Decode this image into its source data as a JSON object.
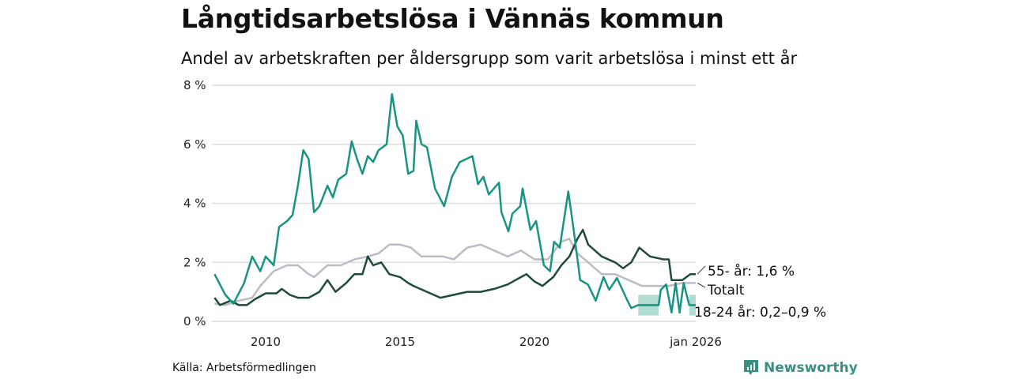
{
  "title": "Långtidsarbetslösa i Vännäs kommun",
  "subtitle": "Andel av arbetskraften per åldersgrupp som varit arbetslösa i minst ett år",
  "source": "Källa: Arbetsförmedlingen",
  "brand": "Newsworthy",
  "chart_data": {
    "type": "line",
    "xlim": [
      2008.0,
      2026.0
    ],
    "ylim": [
      0,
      8
    ],
    "y_ticks": [
      {
        "v": 0,
        "label": "0 %"
      },
      {
        "v": 2,
        "label": "2 %"
      },
      {
        "v": 4,
        "label": "4 %"
      },
      {
        "v": 6,
        "label": "6 %"
      },
      {
        "v": 8,
        "label": "8 %"
      }
    ],
    "x_ticks": [
      {
        "v": 2010,
        "label": "2010"
      },
      {
        "v": 2015,
        "label": "2015"
      },
      {
        "v": 2020,
        "label": "2020"
      },
      {
        "v": 2026,
        "label": "jan 2026"
      }
    ],
    "grid": true,
    "series": [
      {
        "name": "Totalt",
        "label": "Totalt",
        "color": "#bdbcc4",
        "x": [
          2008.1,
          2008.5,
          2009.0,
          2009.5,
          2009.8,
          2010.3,
          2010.8,
          2011.2,
          2011.6,
          2011.8,
          2012.3,
          2012.8,
          2013.3,
          2013.8,
          2014.2,
          2014.6,
          2015.0,
          2015.4,
          2015.8,
          2016.2,
          2016.6,
          2017.0,
          2017.5,
          2018.0,
          2018.5,
          2019.0,
          2019.5,
          2020.0,
          2020.5,
          2021.0,
          2021.3,
          2021.6,
          2022.0,
          2022.5,
          2023.0,
          2023.5,
          2024.0,
          2024.5,
          2025.0,
          2025.5,
          2026.0
        ],
        "y": [
          0.6,
          0.55,
          0.7,
          0.8,
          1.2,
          1.7,
          1.9,
          1.9,
          1.6,
          1.5,
          1.9,
          1.9,
          2.1,
          2.2,
          2.3,
          2.6,
          2.6,
          2.5,
          2.2,
          2.2,
          2.2,
          2.1,
          2.5,
          2.6,
          2.4,
          2.2,
          2.4,
          2.1,
          2.1,
          2.7,
          2.8,
          2.3,
          2.0,
          1.6,
          1.6,
          1.4,
          1.2,
          1.2,
          1.2,
          1.3,
          1.3
        ]
      },
      {
        "name": "55- år",
        "label": "55- år: 1,6 %",
        "color": "#1f4a3c",
        "x": [
          2008.1,
          2008.3,
          2008.7,
          2009.0,
          2009.3,
          2009.6,
          2010.0,
          2010.4,
          2010.6,
          2010.9,
          2011.2,
          2011.6,
          2012.0,
          2012.3,
          2012.6,
          2013.0,
          2013.3,
          2013.6,
          2013.8,
          2014.0,
          2014.3,
          2014.6,
          2015.0,
          2015.3,
          2015.5,
          2016.0,
          2016.5,
          2017.0,
          2017.5,
          2018.0,
          2018.5,
          2019.0,
          2019.5,
          2019.7,
          2020.0,
          2020.3,
          2020.7,
          2021.0,
          2021.3,
          2021.6,
          2021.8,
          2022.0,
          2022.5,
          2023.0,
          2023.3,
          2023.6,
          2023.9,
          2024.3,
          2024.8,
          2025.0,
          2025.1,
          2025.5,
          2025.8,
          2026.0
        ],
        "y": [
          0.8,
          0.55,
          0.7,
          0.55,
          0.55,
          0.75,
          0.95,
          0.95,
          1.1,
          0.9,
          0.8,
          0.8,
          1.0,
          1.4,
          1.0,
          1.3,
          1.6,
          1.6,
          2.2,
          1.9,
          2.0,
          1.6,
          1.5,
          1.3,
          1.2,
          1.0,
          0.8,
          0.9,
          1.0,
          1.0,
          1.1,
          1.25,
          1.5,
          1.6,
          1.35,
          1.2,
          1.5,
          1.9,
          2.2,
          2.8,
          3.1,
          2.6,
          2.2,
          2.0,
          1.8,
          2.0,
          2.5,
          2.2,
          2.1,
          2.1,
          1.4,
          1.4,
          1.6,
          1.6
        ]
      },
      {
        "name": "18-24 år",
        "label": "18-24 år: 0,2–0,9 %",
        "color": "#1a9482",
        "band_color": "#a8d8cc",
        "x": [
          2008.1,
          2008.5,
          2008.8,
          2009.2,
          2009.5,
          2009.8,
          2010.0,
          2010.3,
          2010.5,
          2010.8,
          2011.0,
          2011.2,
          2011.4,
          2011.6,
          2011.8,
          2012.0,
          2012.3,
          2012.5,
          2012.7,
          2013.0,
          2013.2,
          2013.4,
          2013.6,
          2013.8,
          2014.0,
          2014.2,
          2014.5,
          2014.7,
          2014.9,
          2015.1,
          2015.3,
          2015.5,
          2015.6,
          2015.8,
          2016.0,
          2016.3,
          2016.64,
          2016.93,
          2017.22,
          2017.69,
          2017.9,
          2018.1,
          2018.3,
          2018.68,
          2018.77,
          2019.03,
          2019.18,
          2019.47,
          2019.56,
          2019.85,
          2020.06,
          2020.35,
          2020.58,
          2020.73,
          2020.94,
          2021.26,
          2021.46,
          2021.7,
          2021.99,
          2022.28,
          2022.57,
          2022.78,
          2023.07,
          2023.45,
          2023.6,
          2023.86,
          2024.62,
          2024.7,
          2024.9,
          2025.1,
          2025.25,
          2025.4,
          2025.55,
          2025.76,
          2026.0
        ],
        "y": [
          1.6,
          0.9,
          0.6,
          1.3,
          2.2,
          1.7,
          2.2,
          1.9,
          3.2,
          3.4,
          3.6,
          4.6,
          5.8,
          5.5,
          3.7,
          3.9,
          4.6,
          4.2,
          4.8,
          5.0,
          6.1,
          5.5,
          5.0,
          5.6,
          5.4,
          5.8,
          6.0,
          7.7,
          6.6,
          6.3,
          5.0,
          5.1,
          6.8,
          6.0,
          5.9,
          4.5,
          3.9,
          4.9,
          5.4,
          5.6,
          4.65,
          4.9,
          4.3,
          4.7,
          3.7,
          3.05,
          3.65,
          3.9,
          4.5,
          3.1,
          3.4,
          1.9,
          1.7,
          2.7,
          2.5,
          4.4,
          3.1,
          1.4,
          1.25,
          0.7,
          1.5,
          1.07,
          1.47,
          0.72,
          0.45,
          0.55,
          0.55,
          1.07,
          1.25,
          0.3,
          1.3,
          0.3,
          1.3,
          0.55,
          0.55
        ],
        "bands": [
          {
            "x": [
              2023.86,
              2024.62
            ],
            "low": 0.2,
            "high": 0.9
          },
          {
            "x": [
              2025.76,
              2026.0
            ],
            "low": 0.2,
            "high": 0.9
          }
        ]
      }
    ]
  }
}
